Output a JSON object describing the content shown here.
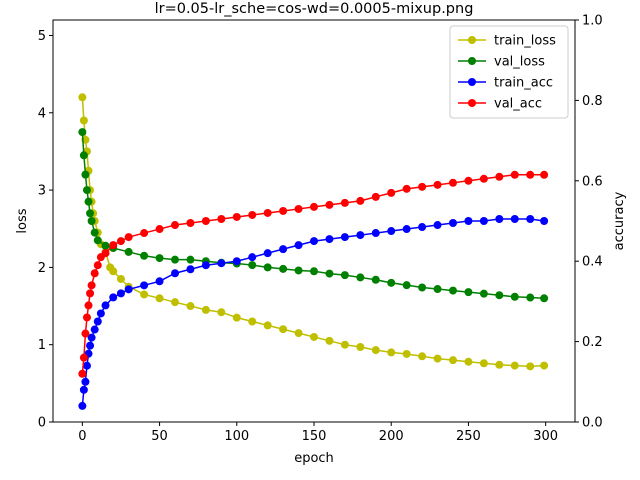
{
  "chart_data": {
    "type": "line",
    "title": "lr=0.05-lr_sche=cos-wd=0.0005-mixup.png",
    "xlabel": "epoch",
    "ylabel_left": "loss",
    "ylabel_right": "accuracy",
    "xlim": [
      -19,
      319
    ],
    "ylim_left": [
      0,
      5.2
    ],
    "ylim_right": [
      0,
      1.0
    ],
    "x_ticks": [
      "0",
      "50",
      "100",
      "150",
      "200",
      "250",
      "300"
    ],
    "y_left_ticks": [
      "0",
      "1",
      "2",
      "3",
      "4",
      "5"
    ],
    "y_right_ticks": [
      "0.0",
      "0.2",
      "0.4",
      "0.6",
      "0.8",
      "1.0"
    ],
    "legend_position": "top-right",
    "series": [
      {
        "name": "train_loss",
        "color": "#bfbf00",
        "axis": "left",
        "points": [
          [
            0,
            4.2
          ],
          [
            1,
            3.9
          ],
          [
            2,
            3.65
          ],
          [
            3,
            3.5
          ],
          [
            4,
            3.25
          ],
          [
            5,
            3.0
          ],
          [
            6,
            2.85
          ],
          [
            7,
            2.7
          ],
          [
            8,
            2.6
          ],
          [
            10,
            2.45
          ],
          [
            12,
            2.3
          ],
          [
            15,
            2.2
          ],
          [
            18,
            2.0
          ],
          [
            20,
            1.95
          ],
          [
            25,
            1.85
          ],
          [
            30,
            1.75
          ],
          [
            40,
            1.65
          ],
          [
            50,
            1.6
          ],
          [
            60,
            1.55
          ],
          [
            70,
            1.5
          ],
          [
            80,
            1.45
          ],
          [
            90,
            1.42
          ],
          [
            100,
            1.35
          ],
          [
            110,
            1.3
          ],
          [
            120,
            1.25
          ],
          [
            130,
            1.2
          ],
          [
            140,
            1.15
          ],
          [
            150,
            1.1
          ],
          [
            160,
            1.05
          ],
          [
            170,
            1.0
          ],
          [
            180,
            0.97
          ],
          [
            190,
            0.93
          ],
          [
            200,
            0.9
          ],
          [
            210,
            0.88
          ],
          [
            220,
            0.85
          ],
          [
            230,
            0.82
          ],
          [
            240,
            0.8
          ],
          [
            250,
            0.78
          ],
          [
            260,
            0.76
          ],
          [
            270,
            0.74
          ],
          [
            280,
            0.73
          ],
          [
            290,
            0.72
          ],
          [
            299,
            0.73
          ]
        ]
      },
      {
        "name": "val_loss",
        "color": "#008000",
        "axis": "left",
        "points": [
          [
            0,
            3.75
          ],
          [
            1,
            3.45
          ],
          [
            2,
            3.2
          ],
          [
            3,
            3.0
          ],
          [
            4,
            2.85
          ],
          [
            5,
            2.7
          ],
          [
            6,
            2.6
          ],
          [
            8,
            2.45
          ],
          [
            10,
            2.35
          ],
          [
            15,
            2.28
          ],
          [
            20,
            2.25
          ],
          [
            30,
            2.2
          ],
          [
            40,
            2.15
          ],
          [
            50,
            2.12
          ],
          [
            60,
            2.1
          ],
          [
            70,
            2.1
          ],
          [
            80,
            2.08
          ],
          [
            90,
            2.06
          ],
          [
            100,
            2.05
          ],
          [
            110,
            2.03
          ],
          [
            120,
            2.0
          ],
          [
            130,
            1.98
          ],
          [
            140,
            1.96
          ],
          [
            150,
            1.95
          ],
          [
            160,
            1.92
          ],
          [
            170,
            1.9
          ],
          [
            180,
            1.87
          ],
          [
            190,
            1.84
          ],
          [
            200,
            1.8
          ],
          [
            210,
            1.77
          ],
          [
            220,
            1.74
          ],
          [
            230,
            1.72
          ],
          [
            240,
            1.7
          ],
          [
            250,
            1.68
          ],
          [
            260,
            1.66
          ],
          [
            270,
            1.64
          ],
          [
            280,
            1.62
          ],
          [
            290,
            1.61
          ],
          [
            299,
            1.6
          ]
        ]
      },
      {
        "name": "train_acc",
        "color": "#0000ff",
        "axis": "right",
        "points": [
          [
            0,
            0.04
          ],
          [
            1,
            0.08
          ],
          [
            2,
            0.1
          ],
          [
            3,
            0.14
          ],
          [
            4,
            0.17
          ],
          [
            5,
            0.19
          ],
          [
            6,
            0.21
          ],
          [
            8,
            0.23
          ],
          [
            10,
            0.25
          ],
          [
            12,
            0.27
          ],
          [
            15,
            0.29
          ],
          [
            20,
            0.31
          ],
          [
            25,
            0.32
          ],
          [
            30,
            0.33
          ],
          [
            40,
            0.34
          ],
          [
            50,
            0.35
          ],
          [
            60,
            0.37
          ],
          [
            70,
            0.38
          ],
          [
            80,
            0.39
          ],
          [
            90,
            0.395
          ],
          [
            100,
            0.4
          ],
          [
            110,
            0.41
          ],
          [
            120,
            0.42
          ],
          [
            130,
            0.43
          ],
          [
            140,
            0.44
          ],
          [
            150,
            0.45
          ],
          [
            160,
            0.455
          ],
          [
            170,
            0.46
          ],
          [
            180,
            0.465
          ],
          [
            190,
            0.47
          ],
          [
            200,
            0.475
          ],
          [
            210,
            0.48
          ],
          [
            220,
            0.485
          ],
          [
            230,
            0.49
          ],
          [
            240,
            0.495
          ],
          [
            250,
            0.5
          ],
          [
            260,
            0.5
          ],
          [
            270,
            0.505
          ],
          [
            280,
            0.505
          ],
          [
            290,
            0.505
          ],
          [
            299,
            0.5
          ]
        ]
      },
      {
        "name": "val_acc",
        "color": "#ff0000",
        "axis": "right",
        "points": [
          [
            0,
            0.12
          ],
          [
            1,
            0.16
          ],
          [
            2,
            0.22
          ],
          [
            3,
            0.26
          ],
          [
            4,
            0.29
          ],
          [
            5,
            0.32
          ],
          [
            6,
            0.34
          ],
          [
            8,
            0.37
          ],
          [
            10,
            0.39
          ],
          [
            12,
            0.41
          ],
          [
            15,
            0.42
          ],
          [
            20,
            0.44
          ],
          [
            25,
            0.45
          ],
          [
            30,
            0.46
          ],
          [
            40,
            0.47
          ],
          [
            50,
            0.48
          ],
          [
            60,
            0.49
          ],
          [
            70,
            0.495
          ],
          [
            80,
            0.5
          ],
          [
            90,
            0.505
          ],
          [
            100,
            0.51
          ],
          [
            110,
            0.515
          ],
          [
            120,
            0.52
          ],
          [
            130,
            0.525
          ],
          [
            140,
            0.53
          ],
          [
            150,
            0.535
          ],
          [
            160,
            0.54
          ],
          [
            170,
            0.545
          ],
          [
            180,
            0.55
          ],
          [
            190,
            0.56
          ],
          [
            200,
            0.57
          ],
          [
            210,
            0.58
          ],
          [
            220,
            0.585
          ],
          [
            230,
            0.59
          ],
          [
            240,
            0.595
          ],
          [
            250,
            0.6
          ],
          [
            260,
            0.605
          ],
          [
            270,
            0.61
          ],
          [
            280,
            0.615
          ],
          [
            290,
            0.615
          ],
          [
            299,
            0.615
          ]
        ]
      }
    ]
  }
}
